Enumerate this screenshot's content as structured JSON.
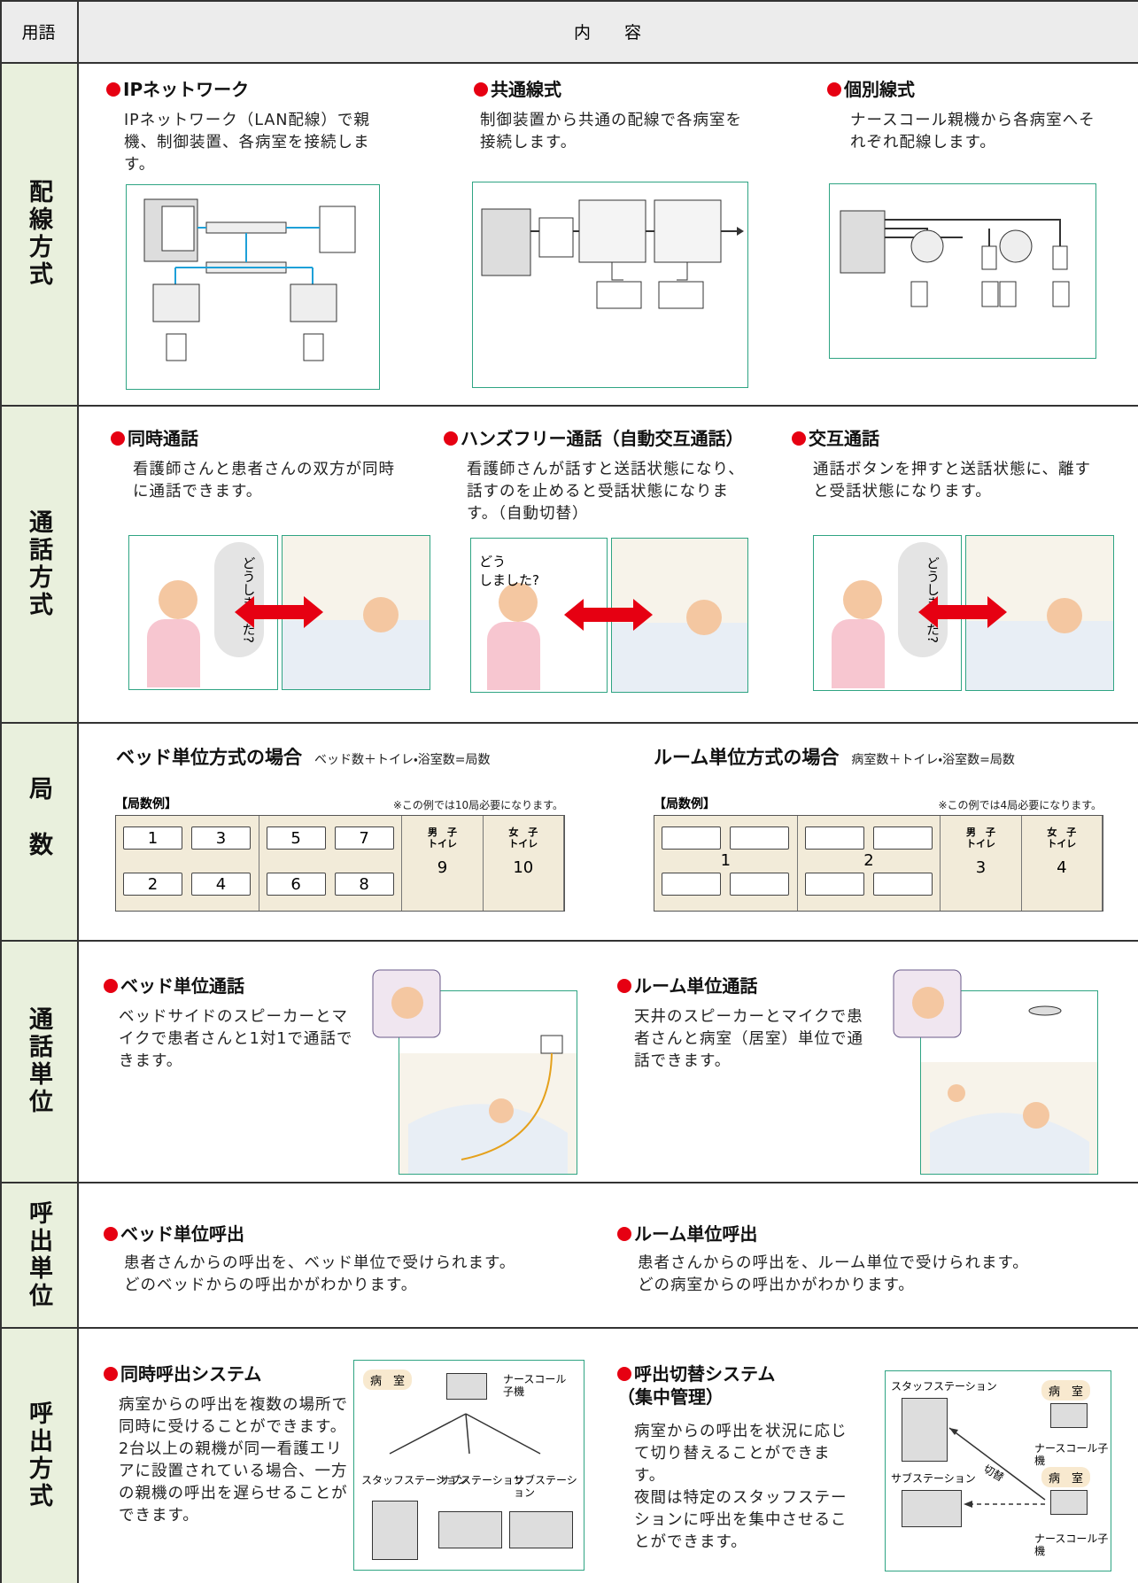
{
  "header": {
    "term": "用語",
    "content": "内　　容"
  },
  "rows": [
    {
      "term": "配線方式",
      "items": [
        {
          "title": "IPネットワーク",
          "text": "IPネットワーク（LAN配線）で親機、制御装置、各病室を接続します。"
        },
        {
          "title": "共通線式",
          "text": "制御装置から共通の配線で各病室を接続します。"
        },
        {
          "title": "個別線式",
          "text": "ナースコール親機から各病室へそれぞれ配線します。"
        }
      ]
    },
    {
      "term": "通話方式",
      "items": [
        {
          "title": "同時通話",
          "text": "看護師さんと患者さんの双方が同時に通話できます。",
          "bubble": "どうしました?"
        },
        {
          "title": "ハンズフリー通話（自動交互通話）",
          "text": "看護師さんが話すと送話状態になり、話すのを止めると受話状態になります。（自動切替）",
          "bubble": "どう\nしました?"
        },
        {
          "title": "交互通話",
          "text": "通話ボタンを押すと送話状態に、離すと受話状態になります。",
          "bubble": "どうしました?"
        }
      ]
    },
    {
      "term": "局数",
      "panels": [
        {
          "title": "ベッド単位方式の場合",
          "formula": "ベッド数＋トイレ・浴室数=局数",
          "example_label": "【局数例】",
          "note": "※この例では10局必要になります。",
          "units": [
            1,
            2,
            3,
            4,
            5,
            6,
            7,
            8
          ],
          "toilets": [
            {
              "label": "男　子\nトイレ",
              "count": 9
            },
            {
              "label": "女　子\nトイレ",
              "count": 10
            }
          ]
        },
        {
          "title": "ルーム単位方式の場合",
          "formula": "病室数＋トイレ・浴室数=局数",
          "example_label": "【局数例】",
          "note": "※この例では4局必要になります。",
          "units": [
            1,
            2
          ],
          "toilets": [
            {
              "label": "男　子\nトイレ",
              "count": 3
            },
            {
              "label": "女　子\nトイレ",
              "count": 4
            }
          ]
        }
      ]
    },
    {
      "term": "通話単位",
      "items": [
        {
          "title": "ベッド単位通話",
          "text": "ベッドサイドのスピーカーとマイクで患者さんと1対1で通話できます。"
        },
        {
          "title": "ルーム単位通話",
          "text": "天井のスピーカーとマイクで患者さんと病室（居室）単位で通話できます。"
        }
      ]
    },
    {
      "term": "呼出単位",
      "items": [
        {
          "title": "ベッド単位呼出",
          "text": "患者さんからの呼出を、ベッド単位で受けられます。\nどのベッドからの呼出かがわかります。"
        },
        {
          "title": "ルーム単位呼出",
          "text": "患者さんからの呼出を、ルーム単位で受けられます。\nどの病室からの呼出かがわかります。"
        }
      ]
    },
    {
      "term": "呼出方式",
      "items": [
        {
          "title": "同時呼出システム",
          "text": "病室からの呼出を複数の場所で同時に受けることができます。\n2台以上の親機が同一看護エリアに設置されている場合、一方の親機の呼出を遅らせることができます。",
          "diagram": {
            "room": "病　室",
            "handset": "ナースコール\n子機",
            "stations": [
              "スタッフステーション",
              "サブステーション",
              "サブステーション"
            ]
          }
        },
        {
          "title": "呼出切替システム\n（集中管理）",
          "text": "病室からの呼出を状況に応じて切り替えることができます。\n夜間は特定のスタッフステーションに呼出を集中させることができます。",
          "diagram": {
            "staff": "スタッフステーション",
            "sub": "サブステーション",
            "switch": "切替",
            "rooms": [
              "病　室",
              "病　室"
            ],
            "handsets": [
              "ナースコール子機",
              "ナースコール子機"
            ]
          }
        }
      ]
    }
  ]
}
